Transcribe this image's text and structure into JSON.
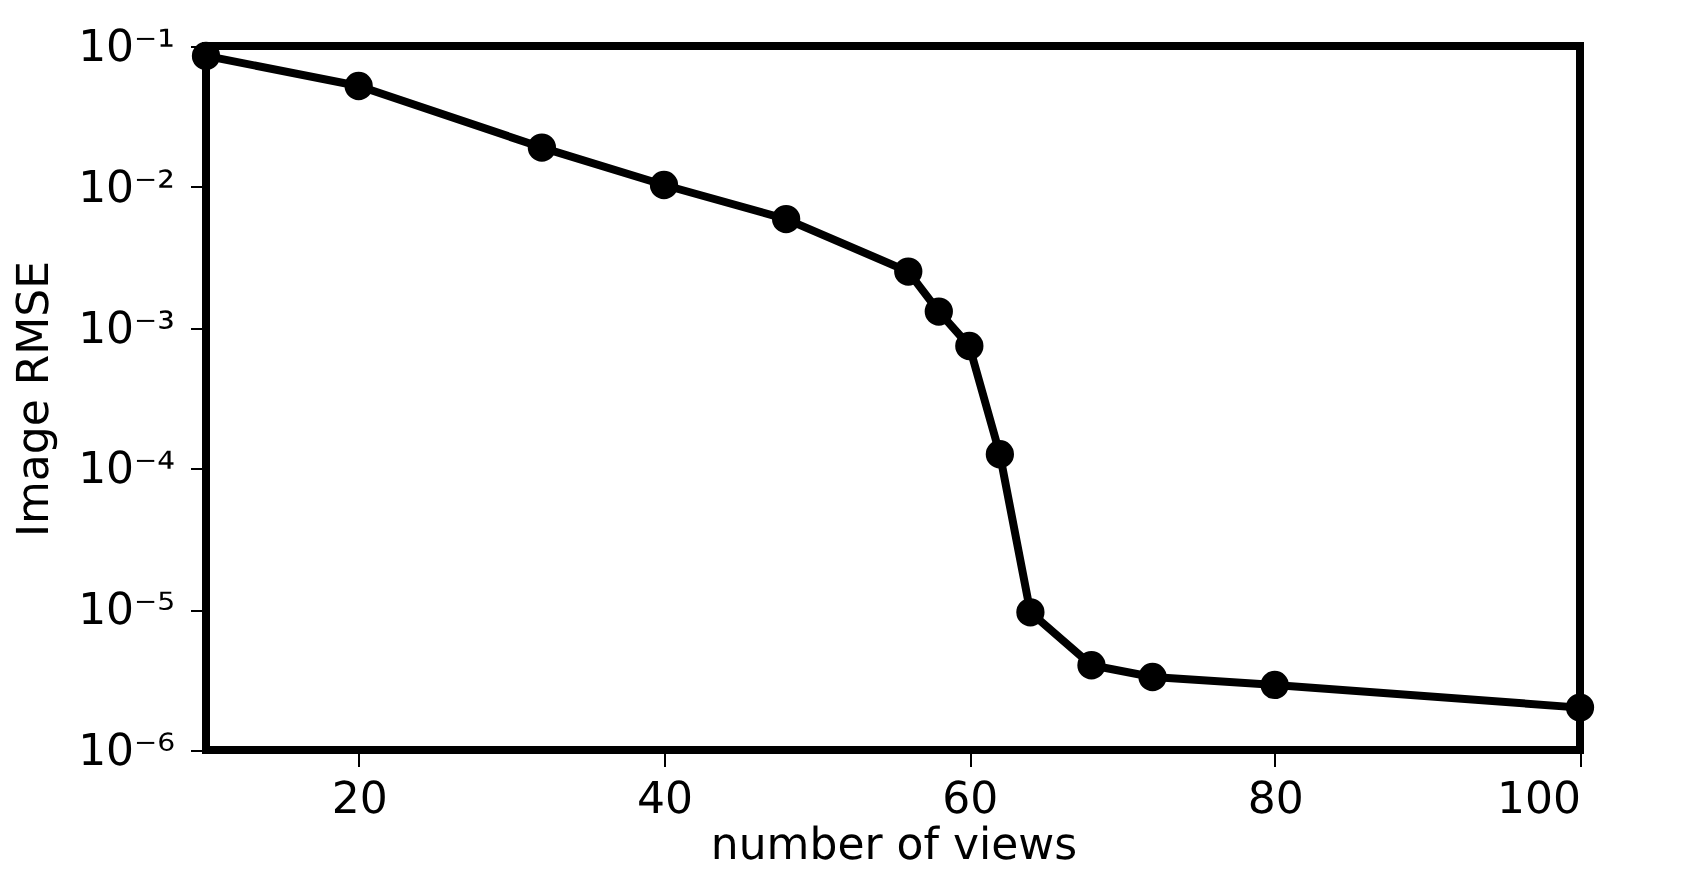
{
  "chart_data": {
    "type": "line",
    "xlabel": "number of views",
    "ylabel": "Image RMSE",
    "x": [
      10,
      20,
      32,
      40,
      48,
      56,
      58,
      60,
      62,
      64,
      68,
      72,
      80,
      100
    ],
    "series": [
      {
        "color": "#000000",
        "values": [
          0.085,
          0.052,
          0.019,
          0.0103,
          0.0059,
          0.0025,
          0.0013,
          0.00074,
          0.000126,
          9.5e-06,
          4e-06,
          3.3e-06,
          2.9e-06,
          2e-06
        ]
      }
    ],
    "xlim": [
      10,
      100
    ],
    "xticks": [
      20,
      40,
      60,
      80,
      100
    ],
    "ylim": [
      1e-06,
      0.1
    ],
    "yticks": [
      {
        "value": 1e-06,
        "label": "10⁻⁶"
      },
      {
        "value": 1e-05,
        "label": "10⁻⁵"
      },
      {
        "value": 0.0001,
        "label": "10⁻⁴"
      },
      {
        "value": 0.001,
        "label": "10⁻³"
      },
      {
        "value": 0.01,
        "label": "10⁻²"
      },
      {
        "value": 0.1,
        "label": "10⁻¹"
      }
    ],
    "log": true,
    "grid": false,
    "marker": "circle",
    "line_style": "solid",
    "legend": false
  }
}
